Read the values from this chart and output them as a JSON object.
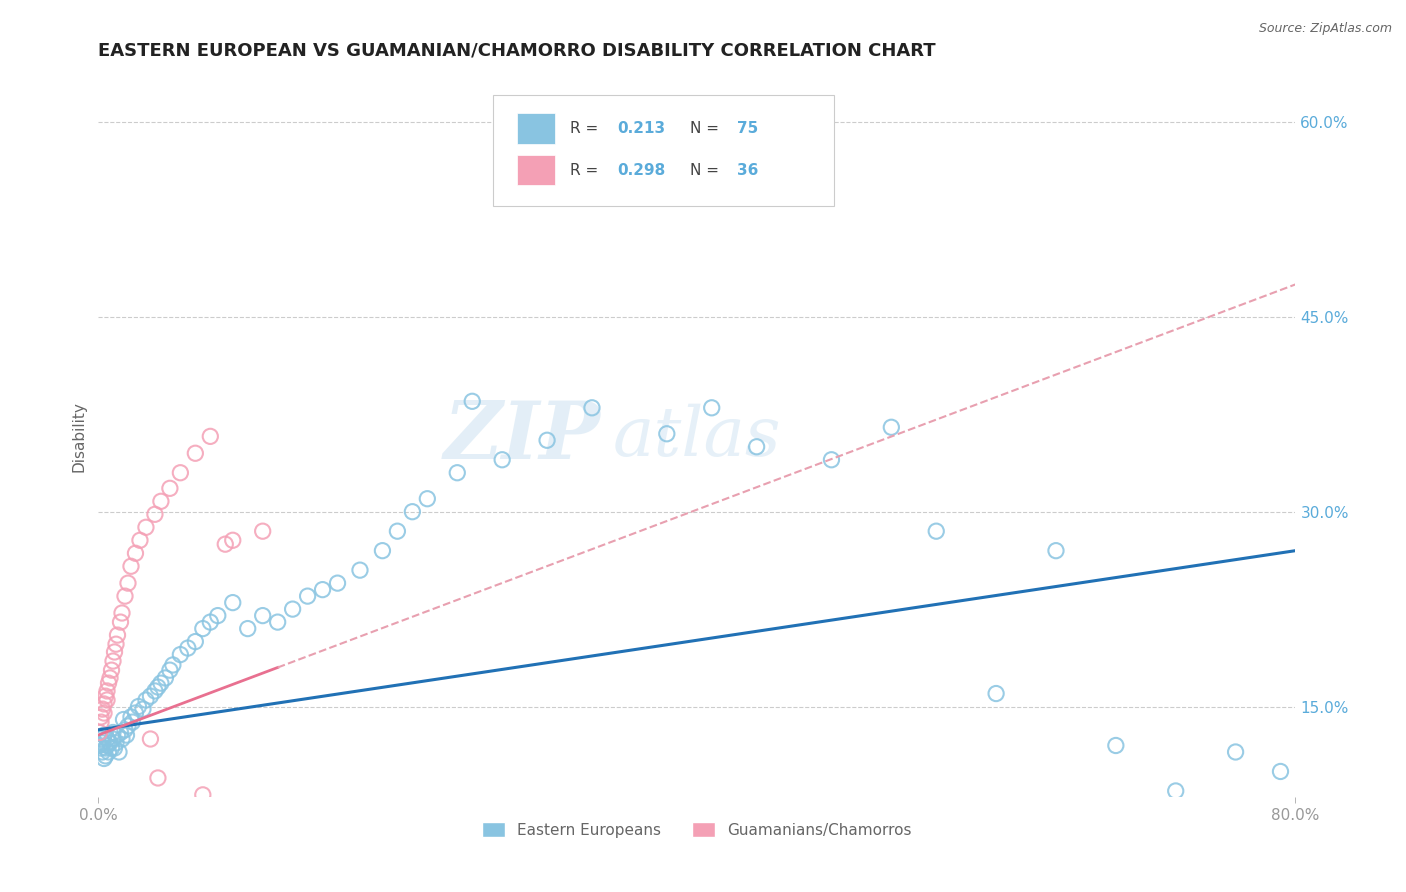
{
  "title": "EASTERN EUROPEAN VS GUAMANIAN/CHAMORRO DISABILITY CORRELATION CHART",
  "source": "Source: ZipAtlas.com",
  "ylabel": "Disability",
  "xlim": [
    0,
    0.8
  ],
  "ylim": [
    0.08,
    0.635
  ],
  "yticks": [
    0.15,
    0.3,
    0.45,
    0.6
  ],
  "yticklabels": [
    "15.0%",
    "30.0%",
    "45.0%",
    "60.0%"
  ],
  "legend_label1": "Eastern Europeans",
  "legend_label2": "Guamanians/Chamorros",
  "blue_color": "#89c4e1",
  "pink_color": "#f4a0b5",
  "trend_blue_color": "#2171b5",
  "trend_pink_color": "#e87090",
  "trend_pink_dash_color": "#e8a0b0",
  "watermark": "ZIPAtlas",
  "r1": 0.213,
  "n1": 75,
  "r2": 0.298,
  "n2": 36,
  "blue_trend_start_y": 0.132,
  "blue_trend_end_y": 0.27,
  "pink_trend_start_y": 0.128,
  "pink_trend_end_y": 0.475,
  "blue_x": [
    0.001,
    0.002,
    0.002,
    0.003,
    0.003,
    0.004,
    0.004,
    0.005,
    0.005,
    0.006,
    0.006,
    0.007,
    0.008,
    0.009,
    0.01,
    0.01,
    0.011,
    0.012,
    0.013,
    0.014,
    0.015,
    0.016,
    0.017,
    0.018,
    0.019,
    0.02,
    0.022,
    0.023,
    0.025,
    0.027,
    0.03,
    0.032,
    0.035,
    0.038,
    0.04,
    0.042,
    0.045,
    0.048,
    0.05,
    0.055,
    0.06,
    0.065,
    0.07,
    0.075,
    0.08,
    0.09,
    0.1,
    0.11,
    0.12,
    0.13,
    0.14,
    0.15,
    0.16,
    0.175,
    0.19,
    0.2,
    0.21,
    0.22,
    0.24,
    0.25,
    0.27,
    0.3,
    0.33,
    0.38,
    0.41,
    0.44,
    0.49,
    0.53,
    0.56,
    0.6,
    0.64,
    0.68,
    0.72,
    0.76,
    0.79
  ],
  "blue_y": [
    0.12,
    0.118,
    0.125,
    0.115,
    0.122,
    0.11,
    0.128,
    0.118,
    0.112,
    0.125,
    0.12,
    0.115,
    0.122,
    0.118,
    0.125,
    0.13,
    0.118,
    0.122,
    0.128,
    0.115,
    0.13,
    0.125,
    0.14,
    0.132,
    0.128,
    0.135,
    0.142,
    0.138,
    0.145,
    0.15,
    0.148,
    0.155,
    0.158,
    0.162,
    0.165,
    0.168,
    0.172,
    0.178,
    0.182,
    0.19,
    0.195,
    0.2,
    0.21,
    0.215,
    0.22,
    0.23,
    0.21,
    0.22,
    0.215,
    0.225,
    0.235,
    0.24,
    0.245,
    0.255,
    0.27,
    0.285,
    0.3,
    0.31,
    0.33,
    0.385,
    0.34,
    0.355,
    0.38,
    0.36,
    0.38,
    0.35,
    0.34,
    0.365,
    0.285,
    0.16,
    0.27,
    0.12,
    0.085,
    0.115,
    0.1
  ],
  "pink_x": [
    0.001,
    0.002,
    0.002,
    0.003,
    0.004,
    0.004,
    0.005,
    0.006,
    0.006,
    0.007,
    0.008,
    0.009,
    0.01,
    0.011,
    0.012,
    0.013,
    0.015,
    0.016,
    0.018,
    0.02,
    0.022,
    0.025,
    0.028,
    0.032,
    0.038,
    0.042,
    0.048,
    0.055,
    0.065,
    0.075,
    0.09,
    0.11,
    0.035,
    0.04,
    0.07,
    0.085
  ],
  "pink_y": [
    0.13,
    0.138,
    0.142,
    0.148,
    0.152,
    0.145,
    0.158,
    0.162,
    0.155,
    0.168,
    0.172,
    0.178,
    0.185,
    0.192,
    0.198,
    0.205,
    0.215,
    0.222,
    0.235,
    0.245,
    0.258,
    0.268,
    0.278,
    0.288,
    0.298,
    0.308,
    0.318,
    0.33,
    0.345,
    0.358,
    0.278,
    0.285,
    0.125,
    0.095,
    0.082,
    0.275
  ],
  "background_color": "#ffffff",
  "grid_color": "#cccccc",
  "title_color": "#222222",
  "axis_label_color": "#666666",
  "tick_color": "#999999",
  "right_tick_color": "#5aabda",
  "legend_text_color": "#444444",
  "legend_value_color": "#5aabda"
}
